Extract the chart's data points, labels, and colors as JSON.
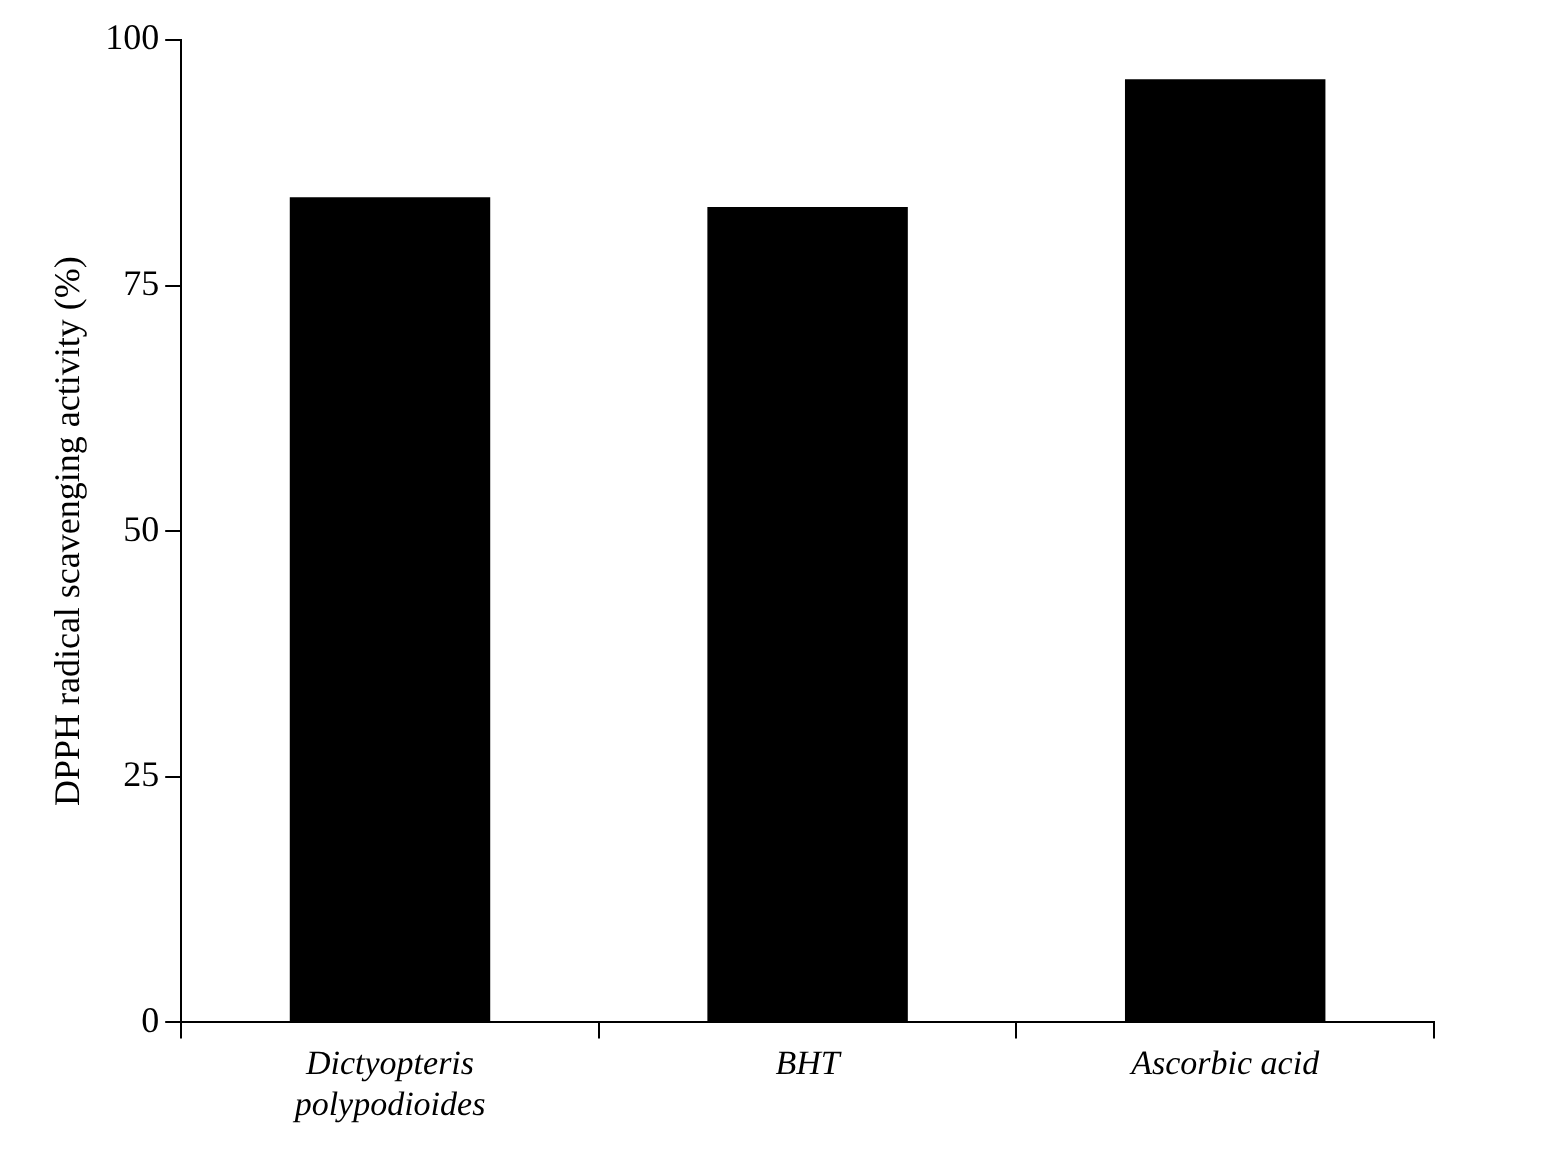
{
  "chart_data": {
    "type": "bar",
    "ylabel": "DPPH radical scavenging activity (%)",
    "categories": [
      "Dictyopteris polypodioides",
      "BHT",
      "Ascorbic acid"
    ],
    "values": [
      84,
      83,
      96
    ],
    "color": "#000000",
    "ylim": [
      0,
      100
    ],
    "yticks": [
      0,
      25,
      50,
      75,
      100
    ],
    "grid": false,
    "legend": false
  }
}
